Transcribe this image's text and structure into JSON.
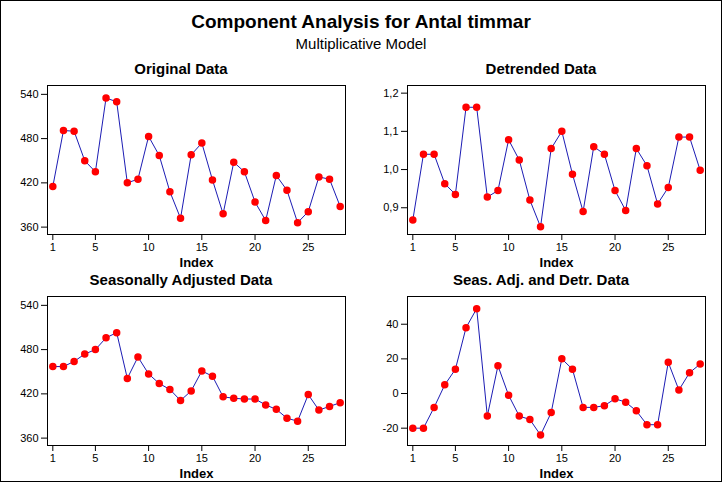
{
  "title": "Component Analysis for Antal timmar",
  "subtitle": "Multiplicative Model",
  "chart_data": [
    {
      "type": "line",
      "title": "Original Data",
      "xlabel": "Index",
      "x": [
        1,
        2,
        3,
        4,
        5,
        6,
        7,
        8,
        9,
        10,
        11,
        12,
        13,
        14,
        15,
        16,
        17,
        18,
        19,
        20,
        21,
        22,
        23,
        24,
        25,
        26,
        27,
        28
      ],
      "values": [
        415,
        491,
        490,
        450,
        435,
        535,
        530,
        420,
        425,
        483,
        457,
        408,
        372,
        458,
        474,
        424,
        378,
        448,
        435,
        394,
        369,
        430,
        410,
        366,
        381,
        428,
        425,
        388
      ],
      "color": "#1c1cb4",
      "marker": "circle",
      "xlim": [
        0.5,
        28.5
      ],
      "xticks": [
        1,
        5,
        10,
        15,
        20,
        25
      ],
      "ylim": [
        350,
        552
      ],
      "yticks": [
        360,
        420,
        480,
        540
      ]
    },
    {
      "type": "line",
      "title": "Detrended Data",
      "xlabel": "Index",
      "x": [
        1,
        2,
        3,
        4,
        5,
        6,
        7,
        8,
        9,
        10,
        11,
        12,
        13,
        14,
        15,
        16,
        17,
        18,
        19,
        20,
        21,
        22,
        23,
        24,
        25,
        26,
        27,
        28
      ],
      "values": [
        0.868,
        1.04,
        1.04,
        0.963,
        0.935,
        1.163,
        1.163,
        0.928,
        0.945,
        1.078,
        1.025,
        0.92,
        0.85,
        1.055,
        1.1,
        0.988,
        0.89,
        1.06,
        1.04,
        0.945,
        0.893,
        1.055,
        1.01,
        0.91,
        0.953,
        1.085,
        1.085,
        0.998
      ],
      "color": "#1c1cb4",
      "marker": "circle",
      "xlim": [
        0.5,
        28.5
      ],
      "xticks": [
        1,
        5,
        10,
        15,
        20,
        25
      ],
      "ylim": [
        0.83,
        1.22
      ],
      "yticks": [
        {
          "value": 0.9,
          "label": "0,9"
        },
        {
          "value": 1.0,
          "label": "1,0"
        },
        {
          "value": 1.1,
          "label": "1,1"
        },
        {
          "value": 1.2,
          "label": "1,2"
        }
      ]
    },
    {
      "type": "line",
      "title": "Seasonally Adjusted Data",
      "xlabel": "Index",
      "x": [
        1,
        2,
        3,
        4,
        5,
        6,
        7,
        8,
        9,
        10,
        11,
        12,
        13,
        14,
        15,
        16,
        17,
        18,
        19,
        20,
        21,
        22,
        23,
        24,
        25,
        26,
        27,
        28
      ],
      "values": [
        457,
        457,
        464,
        474,
        480,
        496,
        503,
        441,
        470,
        447,
        434,
        426,
        411,
        424,
        451,
        444,
        416,
        414,
        413,
        413,
        405,
        399,
        387,
        383,
        419,
        398,
        403,
        408
      ],
      "color": "#1c1cb4",
      "marker": "circle",
      "xlim": [
        0.5,
        28.5
      ],
      "xticks": [
        1,
        5,
        10,
        15,
        20,
        25
      ],
      "ylim": [
        350,
        552
      ],
      "yticks": [
        360,
        420,
        480,
        540
      ]
    },
    {
      "type": "line",
      "title": "Seas. Adj. and Detr. Data",
      "xlabel": "Index",
      "x": [
        1,
        2,
        3,
        4,
        5,
        6,
        7,
        8,
        9,
        10,
        11,
        12,
        13,
        14,
        15,
        16,
        17,
        18,
        19,
        20,
        21,
        22,
        23,
        24,
        25,
        26,
        27,
        28
      ],
      "values": [
        -20,
        -20,
        -8,
        5,
        14,
        38,
        49,
        -13,
        16,
        -1,
        -13,
        -15,
        -24,
        -11,
        20,
        14,
        -8,
        -8,
        -7,
        -3,
        -5,
        -10,
        -18,
        -18,
        18,
        2,
        12,
        17
      ],
      "color": "#1c1cb4",
      "marker": "circle",
      "xlim": [
        0.5,
        28.5
      ],
      "xticks": [
        1,
        5,
        10,
        15,
        20,
        25
      ],
      "ylim": [
        -30,
        56
      ],
      "yticks": [
        -20,
        0,
        20,
        40
      ]
    }
  ]
}
